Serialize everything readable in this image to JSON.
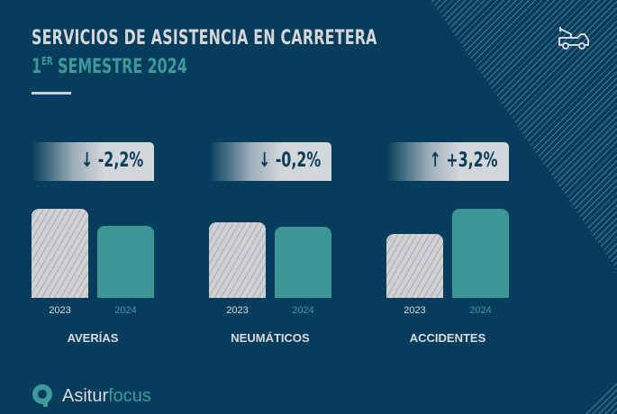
{
  "header": {
    "title": "SERVICIOS DE ASISTENCIA EN CARRETERA",
    "subtitle_ordinal": "1",
    "subtitle_sup": "ER",
    "subtitle_rest": " SEMESTRE 2024",
    "icon": "tow-truck-icon"
  },
  "colors": {
    "background": "#073d5c",
    "year_2023": "#cfd1d3",
    "year_2024": "#3d9696",
    "accent": "#3d9a9b"
  },
  "chart_data": {
    "type": "bar",
    "categories": [
      "AVERÍAS",
      "NEUMÁTICOS",
      "ACCIDENTES"
    ],
    "series": [
      {
        "name": "2023",
        "values": [
          99,
          84,
          71
        ]
      },
      {
        "name": "2024",
        "values": [
          80,
          79,
          99
        ]
      }
    ],
    "value_note": "relative bar heights (no axis printed)",
    "changes": [
      {
        "arrow": "↓",
        "label": "-2,2%"
      },
      {
        "arrow": "↓",
        "label": "-0,2%"
      },
      {
        "arrow": "↑",
        "label": "+3,2%"
      }
    ],
    "grid": false
  },
  "footer": {
    "brand_a": "Asitur",
    "brand_b": "focus"
  }
}
